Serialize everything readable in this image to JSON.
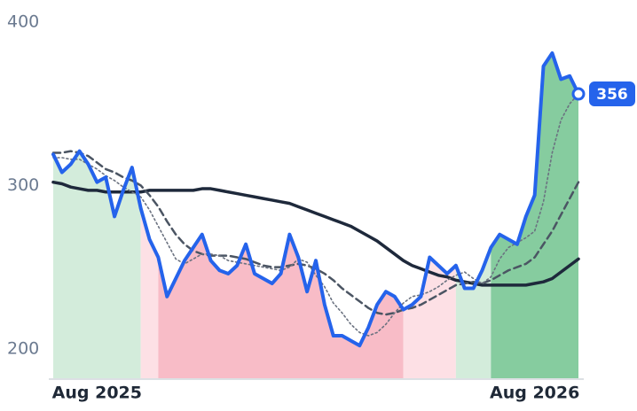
{
  "chart_data": {
    "type": "line",
    "categories": [
      null,
      null,
      null,
      null,
      null,
      "Aug 2025",
      null,
      null,
      null,
      null,
      null,
      null,
      null,
      null,
      null,
      null,
      null,
      null,
      null,
      null,
      null,
      null,
      null,
      null,
      null,
      null,
      null,
      null,
      null,
      null,
      null,
      null,
      null,
      null,
      null,
      null,
      null,
      null,
      null,
      null,
      null,
      null,
      null,
      null,
      null,
      null,
      null,
      null,
      null,
      null,
      null,
      null,
      null,
      null,
      null,
      "Aug 2026",
      null,
      null,
      null,
      null,
      null
    ],
    "series": [
      {
        "color": "#2563eb",
        "width": 4,
        "dash": "none",
        "values": [
          319,
          308,
          313,
          321,
          313,
          302,
          305,
          281,
          297,
          311,
          286,
          267,
          256,
          232,
          243,
          254,
          262,
          270,
          254,
          248,
          246,
          251,
          264,
          246,
          243,
          240,
          246,
          270,
          256,
          235,
          254,
          227,
          208,
          208,
          205,
          202,
          213,
          227,
          235,
          232,
          224,
          227,
          232,
          256,
          251,
          246,
          251,
          237,
          237,
          248,
          262,
          270,
          267,
          264,
          281,
          294,
          373,
          381,
          365,
          367,
          356
        ]
      },
      {
        "color": "#4b5563",
        "width": 2.5,
        "dash": "8 5",
        "values": [
          320,
          320,
          321,
          320,
          318,
          314,
          310,
          308,
          305,
          303,
          300,
          294,
          287,
          278,
          270,
          264,
          260,
          258,
          257,
          257,
          257,
          256,
          255,
          253,
          251,
          250,
          250,
          251,
          252,
          251,
          249,
          246,
          242,
          237,
          233,
          229,
          225,
          222,
          221,
          222,
          224,
          225,
          227,
          230,
          233,
          236,
          239,
          240,
          241,
          240,
          242,
          245,
          248,
          250,
          252,
          256,
          264,
          272,
          282,
          292,
          302
        ]
      },
      {
        "color": "#6b7280",
        "width": 1.6,
        "dash": "2 3",
        "values": [
          317,
          317,
          316,
          316,
          313,
          310,
          306,
          303,
          299,
          296,
          293,
          285,
          275,
          265,
          255,
          252,
          255,
          258,
          258,
          257,
          254,
          253,
          252,
          251,
          250,
          249,
          248,
          250,
          255,
          253,
          245,
          238,
          228,
          222,
          215,
          210,
          208,
          210,
          215,
          222,
          228,
          232,
          233,
          235,
          238,
          242,
          245,
          247,
          243,
          240,
          244,
          255,
          262,
          265,
          268,
          272,
          290,
          320,
          340,
          350,
          356
        ]
      },
      {
        "color": "#1e293b",
        "width": 3.5,
        "dash": "none",
        "values": [
          302,
          301,
          299,
          298,
          297,
          297,
          296,
          296,
          296,
          296,
          296,
          297,
          297,
          297,
          297,
          297,
          297,
          298,
          298,
          297,
          296,
          295,
          294,
          293,
          292,
          291,
          290,
          289,
          287,
          285,
          283,
          281,
          279,
          277,
          275,
          272,
          269,
          266,
          262,
          258,
          254,
          251,
          249,
          247,
          245,
          244,
          242,
          241,
          240,
          239,
          239,
          239,
          239,
          239,
          239,
          240,
          241,
          243,
          247,
          251,
          255
        ]
      }
    ],
    "zones": [
      {
        "from": 0,
        "to": 10,
        "color": "#d3ecdb"
      },
      {
        "from": 10,
        "to": 12,
        "color": "#fde0e5"
      },
      {
        "from": 12,
        "to": 40,
        "color": "#f8bcc7"
      },
      {
        "from": 40,
        "to": 46,
        "color": "#fde0e5"
      },
      {
        "from": 46,
        "to": 50,
        "color": "#d3ecdb"
      },
      {
        "from": 50,
        "to": 60,
        "color": "#86cc9f"
      }
    ],
    "ylim": [
      182,
      413.5
    ],
    "yticks": [
      200,
      300,
      400
    ],
    "grid": false
  }
}
